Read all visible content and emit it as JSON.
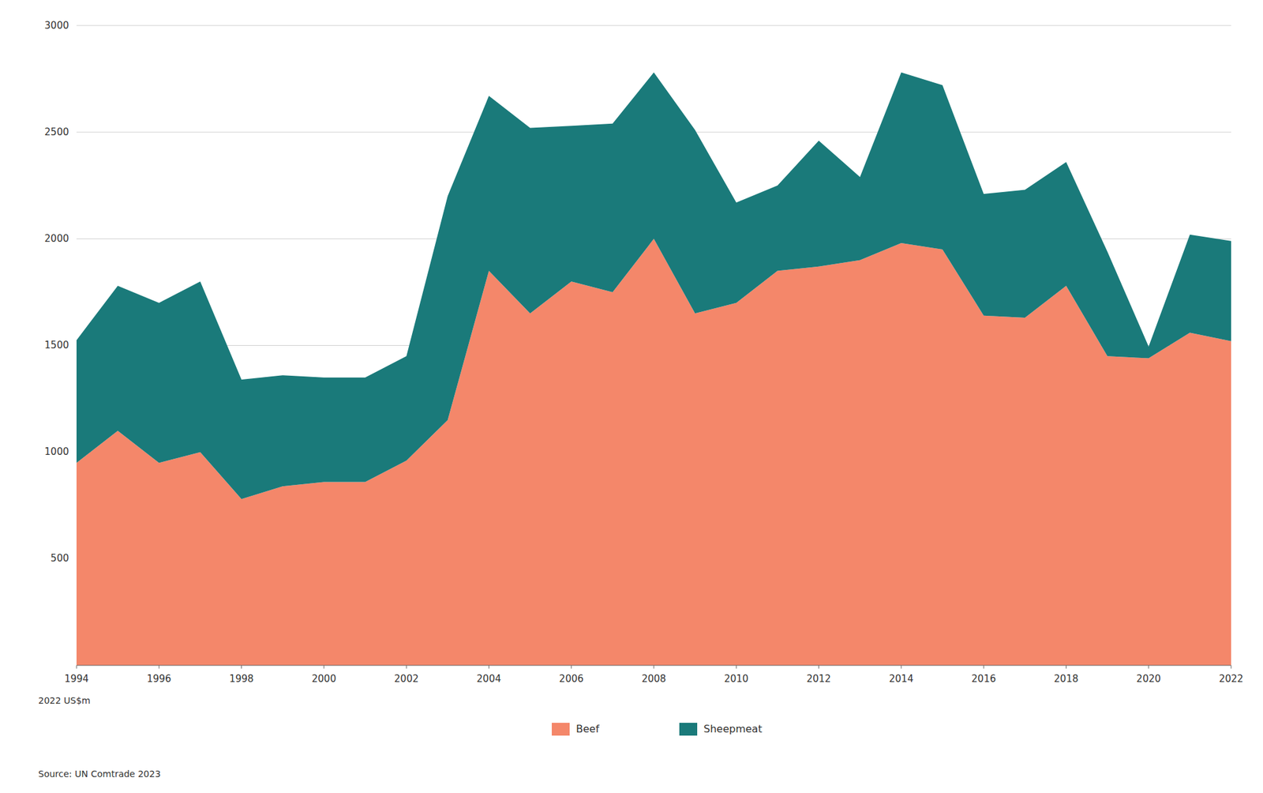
{
  "chart_data": {
    "type": "area",
    "stacked": true,
    "x": [
      1994,
      1995,
      1996,
      1997,
      1998,
      1999,
      2000,
      2001,
      2002,
      2003,
      2004,
      2005,
      2006,
      2007,
      2008,
      2009,
      2010,
      2011,
      2012,
      2013,
      2014,
      2015,
      2016,
      2017,
      2018,
      2019,
      2020,
      2021,
      2022
    ],
    "series": [
      {
        "name": "Beef",
        "color": "#F4876A",
        "values": [
          950,
          1100,
          950,
          1000,
          780,
          840,
          860,
          860,
          960,
          1150,
          1850,
          1650,
          1800,
          1750,
          2000,
          1650,
          1700,
          1850,
          1870,
          1900,
          1980,
          1950,
          1640,
          1630,
          1780,
          1450,
          1440,
          1560,
          1520
        ]
      },
      {
        "name": "Sheepmeat",
        "color": "#1A7A7A",
        "values": [
          575,
          680,
          750,
          800,
          560,
          520,
          490,
          490,
          490,
          1050,
          820,
          870,
          730,
          790,
          780,
          860,
          470,
          400,
          590,
          390,
          800,
          770,
          570,
          600,
          580,
          490,
          55,
          460,
          470
        ]
      }
    ],
    "xlim": [
      1994,
      2022
    ],
    "xticks": [
      1994,
      1996,
      1998,
      2000,
      2002,
      2004,
      2006,
      2008,
      2010,
      2012,
      2014,
      2016,
      2018,
      2020,
      2022
    ],
    "ylim": [
      0,
      3000
    ],
    "yticks": [
      500,
      1000,
      1500,
      2000,
      2500,
      3000
    ],
    "ylabel": "2022 US$m",
    "annotations": [
      "Source: UN Comtrade 2023"
    ],
    "grid": true,
    "legend": "bottom"
  }
}
